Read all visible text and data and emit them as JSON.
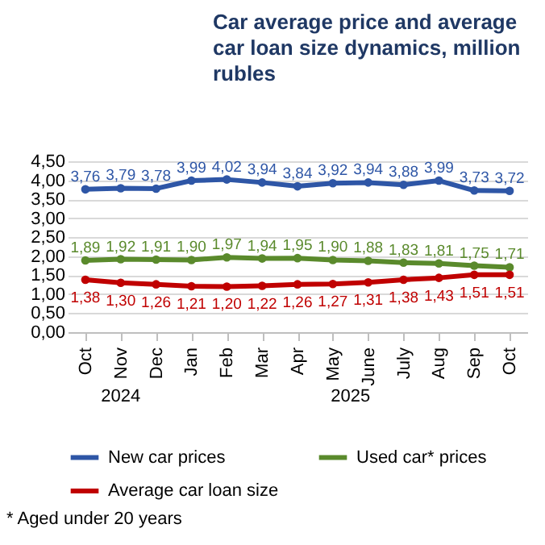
{
  "chart_data": {
    "type": "line",
    "title": "Car average price and average car loan size dynamics, million rubles",
    "categories": [
      "Oct",
      "Nov",
      "Dec",
      "Jan",
      "Feb",
      "Mar",
      "Apr",
      "May",
      "June",
      "July",
      "Aug",
      "Sep",
      "Oct"
    ],
    "series": [
      {
        "name": "New car prices",
        "color": "#2e56a6",
        "values": [
          3.76,
          3.79,
          3.78,
          3.99,
          4.02,
          3.94,
          3.84,
          3.92,
          3.94,
          3.88,
          3.99,
          3.73,
          3.72
        ],
        "value_labels": [
          "3,76",
          "3,79",
          "3,78",
          "3,99",
          "4,02",
          "3,94",
          "3,84",
          "3,92",
          "3,94",
          "3,88",
          "3,99",
          "3,73",
          "3,72"
        ]
      },
      {
        "name": "Used car* prices",
        "color": "#5a8a2c",
        "values": [
          1.89,
          1.92,
          1.91,
          1.9,
          1.97,
          1.94,
          1.95,
          1.9,
          1.88,
          1.83,
          1.81,
          1.75,
          1.71
        ],
        "value_labels": [
          "1,89",
          "1,92",
          "1,91",
          "1,90",
          "1,97",
          "1,94",
          "1,95",
          "1,90",
          "1,88",
          "1,83",
          "1,81",
          "1,75",
          "1,71"
        ]
      },
      {
        "name": "Average car loan size",
        "color": "#c00000",
        "values": [
          1.38,
          1.3,
          1.26,
          1.21,
          1.2,
          1.22,
          1.26,
          1.27,
          1.31,
          1.38,
          1.43,
          1.51,
          1.51
        ],
        "value_labels": [
          "1,38",
          "1,30",
          "1,26",
          "1,21",
          "1,20",
          "1,22",
          "1,26",
          "1,27",
          "1,31",
          "1,38",
          "1,43",
          "1,51",
          "1,51"
        ]
      }
    ],
    "ylim": [
      0,
      4.5
    ],
    "yticks": [
      {
        "value": 0,
        "label": "0,00"
      },
      {
        "value": 0.5,
        "label": "0,50"
      },
      {
        "value": 1,
        "label": "1,00"
      },
      {
        "value": 1.5,
        "label": "1,50"
      },
      {
        "value": 2,
        "label": "2,00"
      },
      {
        "value": 2.5,
        "label": "2,50"
      },
      {
        "value": 3,
        "label": "3,00"
      },
      {
        "value": 3.5,
        "label": "3,50"
      },
      {
        "value": 4,
        "label": "4,00"
      },
      {
        "value": 4.5,
        "label": "4,50"
      }
    ],
    "grid": "y",
    "legend": "bottom",
    "marker": "circle",
    "line_style": "solid",
    "annotations": [
      "2024",
      "2025",
      "* Aged under 20 years"
    ]
  }
}
